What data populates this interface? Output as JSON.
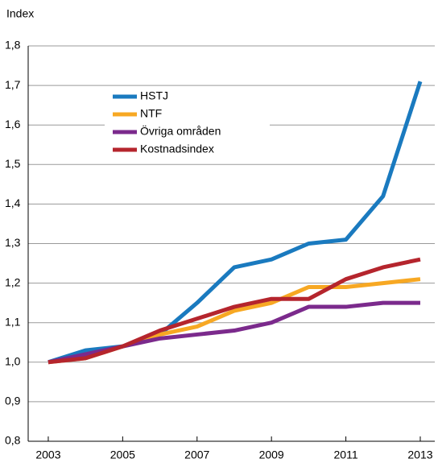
{
  "chart_data": {
    "type": "line",
    "y_label": "Index",
    "x": [
      2003,
      2004,
      2005,
      2006,
      2007,
      2008,
      2009,
      2010,
      2011,
      2012,
      2013
    ],
    "series": [
      {
        "name": "HSTJ",
        "color": "#1a7abf",
        "values": [
          1.0,
          1.03,
          1.04,
          1.07,
          1.15,
          1.24,
          1.26,
          1.3,
          1.31,
          1.42,
          1.71
        ]
      },
      {
        "name": "NTF",
        "color": "#f7a823",
        "values": [
          1.0,
          1.01,
          1.04,
          1.07,
          1.09,
          1.13,
          1.15,
          1.19,
          1.19,
          1.2,
          1.21
        ]
      },
      {
        "name": "Övriga områden",
        "color": "#7b2a8c",
        "values": [
          1.0,
          1.02,
          1.04,
          1.06,
          1.07,
          1.08,
          1.1,
          1.14,
          1.14,
          1.15,
          1.15
        ]
      },
      {
        "name": "Kostnadsindex",
        "color": "#b5252d",
        "values": [
          1.0,
          1.01,
          1.04,
          1.08,
          1.11,
          1.14,
          1.16,
          1.16,
          1.21,
          1.24,
          1.26
        ]
      }
    ],
    "xlim": [
      2002.46,
      2013.39
    ],
    "xticks": [
      2003,
      2005,
      2007,
      2009,
      2011,
      2013
    ],
    "ylim": [
      0.8,
      1.8
    ],
    "yticks": [
      {
        "value": 0.8,
        "label": "0,8"
      },
      {
        "value": 0.9,
        "label": "0,9"
      },
      {
        "value": 1.0,
        "label": "1,0"
      },
      {
        "value": 1.1,
        "label": "1,1"
      },
      {
        "value": 1.2,
        "label": "1,2"
      },
      {
        "value": 1.3,
        "label": "1,3"
      },
      {
        "value": 1.4,
        "label": "1,4"
      },
      {
        "value": 1.5,
        "label": "1,5"
      },
      {
        "value": 1.6,
        "label": "1,6"
      },
      {
        "value": 1.7,
        "label": "1,7"
      },
      {
        "value": 1.8,
        "label": "1,8"
      }
    ],
    "grid": true,
    "legend": "upper left"
  }
}
